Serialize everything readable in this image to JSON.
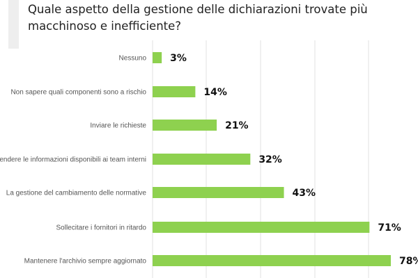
{
  "chart_data": {
    "type": "bar",
    "orientation": "horizontal",
    "title": "Quale aspetto della gestione delle dichiarazioni trovate più macchinoso e inefficiente?",
    "categories": [
      "Nessuno",
      "Non sapere quali componenti sono a rischio",
      "Inviare le richieste",
      "Rendere le informazioni disponibili ai team interni",
      "La gestione del cambiamento delle normative",
      "Sollecitare i fornitori in ritardo",
      "Mantenere l'archivio sempre aggiornato"
    ],
    "values": [
      3,
      14,
      21,
      32,
      43,
      71,
      78
    ],
    "value_labels": [
      "3%",
      "14%",
      "21%",
      "32%",
      "43%",
      "71%",
      "78%"
    ],
    "bar_color": "#8ed14f",
    "grid": true
  }
}
